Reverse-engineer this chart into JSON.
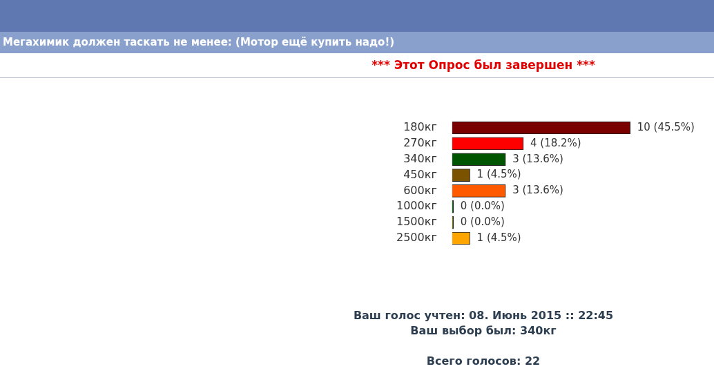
{
  "chart_data": {
    "type": "bar",
    "orientation": "horizontal",
    "title": "Мегахимик должен таскать не менее: (Мотор ещё купить надо!)",
    "subtitle": "*** Этот Опрос был завершен ***",
    "categories": [
      "180кг",
      "270кг",
      "340кг",
      "450кг",
      "600кг",
      "1000кг",
      "1500кг",
      "2500кг"
    ],
    "values": [
      10,
      4,
      3,
      1,
      3,
      0,
      0,
      1
    ],
    "colors": [
      "#7a0000",
      "#ff0000",
      "#005500",
      "#7a5200",
      "#ff5a00",
      "#006600",
      "#6b6b00",
      "#ffa500"
    ],
    "value_labels": [
      "10 (45.5%)",
      "4 (18.2%)",
      "3 (13.6%)",
      "1 (4.5%)",
      "3 (13.6%)",
      "0 (0.0%)",
      "0 (0.0%)",
      "1 (4.5%)"
    ],
    "tick_labels": "y",
    "grid": false,
    "legend": false,
    "annotations": [
      "Ваш голос учтен: 08. Июнь 2015 :: 22:45",
      "Ваш выбор был: 340кг",
      "Всего голосов: 22"
    ]
  }
}
